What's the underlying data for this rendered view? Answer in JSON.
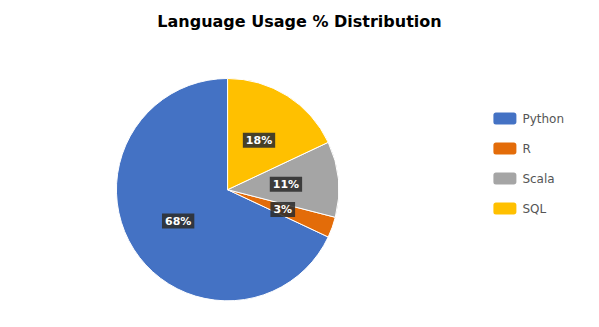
{
  "chart_data": {
    "type": "pie",
    "title": "Language Usage % Distribution",
    "categories": [
      "Python",
      "R",
      "Scala",
      "SQL"
    ],
    "values": [
      68,
      3,
      11,
      18
    ],
    "value_labels": [
      "68%",
      "3%",
      "11%",
      "18%"
    ],
    "colors": [
      "#4472C4",
      "#E36C09",
      "#A5A5A5",
      "#FFC000"
    ],
    "data_labels": true,
    "legend": "right"
  }
}
